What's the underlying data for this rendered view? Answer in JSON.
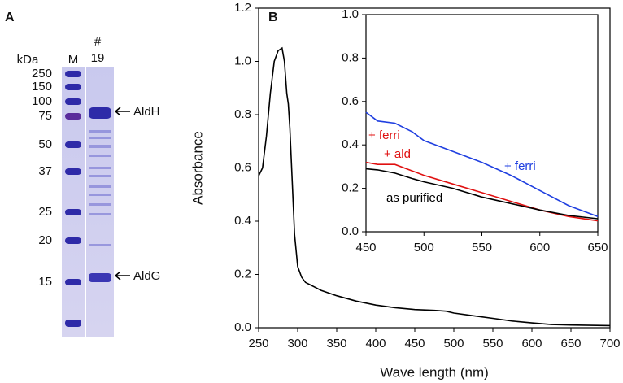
{
  "gel": {
    "panel_label": "A",
    "unit": "kDa",
    "marker_lane": "M",
    "sample_lane": [
      "#",
      "19"
    ],
    "markers": [
      250,
      150,
      100,
      75,
      50,
      37,
      25,
      20,
      15
    ],
    "bands": [
      "AldH",
      "AldG"
    ]
  },
  "chart_data": [
    {
      "type": "line",
      "panel_label": "B",
      "x_label": "Wave length (nm)",
      "y_label": "Absorbance",
      "xlim": [
        250,
        700
      ],
      "xticks": [
        250,
        300,
        350,
        400,
        450,
        500,
        550,
        600,
        650,
        700
      ],
      "ylim": [
        0,
        1.2
      ],
      "yticks": [
        {
          "value": 0,
          "label": "0.0"
        },
        0.2,
        0.4,
        0.6,
        0.8,
        {
          "value": 1,
          "label": "1.0"
        },
        1.2
      ],
      "x": [
        250,
        255,
        260,
        265,
        270,
        275,
        280,
        283,
        286,
        288,
        290,
        293,
        296,
        300,
        305,
        310,
        320,
        330,
        350,
        375,
        400,
        425,
        450,
        475,
        490,
        500,
        525,
        550,
        575,
        600,
        625,
        650,
        700
      ],
      "series": [
        {
          "color": "#000000",
          "values": [
            0.57,
            0.6,
            0.72,
            0.88,
            1.0,
            1.04,
            1.05,
            1.0,
            0.88,
            0.84,
            0.75,
            0.55,
            0.35,
            0.23,
            0.19,
            0.17,
            0.155,
            0.14,
            0.12,
            0.1,
            0.085,
            0.075,
            0.068,
            0.065,
            0.062,
            0.055,
            0.045,
            0.035,
            0.025,
            0.018,
            0.012,
            0.01,
            0.008
          ]
        }
      ]
    },
    {
      "type": "line",
      "xlim": [
        450,
        650
      ],
      "xticks": [
        450,
        500,
        550,
        600,
        650
      ],
      "ylim": [
        0,
        1
      ],
      "yticks": [
        {
          "value": 0,
          "label": "0.0"
        },
        0.2,
        0.4,
        0.6,
        0.8,
        {
          "value": 1,
          "label": "1.0"
        }
      ],
      "x": [
        450,
        460,
        475,
        490,
        500,
        525,
        550,
        575,
        600,
        625,
        650
      ],
      "series": [
        {
          "name": "+ ferri",
          "color": "#1f3fe0",
          "values": [
            0.55,
            0.51,
            0.5,
            0.46,
            0.42,
            0.37,
            0.32,
            0.26,
            0.19,
            0.12,
            0.07
          ]
        },
        {
          "label_lines": [
            "+ ferri",
            "+ ald"
          ],
          "color": "#e01010",
          "values": [
            0.32,
            0.31,
            0.31,
            0.28,
            0.26,
            0.22,
            0.18,
            0.14,
            0.1,
            0.07,
            0.05
          ]
        },
        {
          "name": "as purified",
          "color": "#000000",
          "values": [
            0.29,
            0.285,
            0.27,
            0.245,
            0.23,
            0.2,
            0.16,
            0.13,
            0.1,
            0.075,
            0.06
          ]
        }
      ]
    }
  ]
}
